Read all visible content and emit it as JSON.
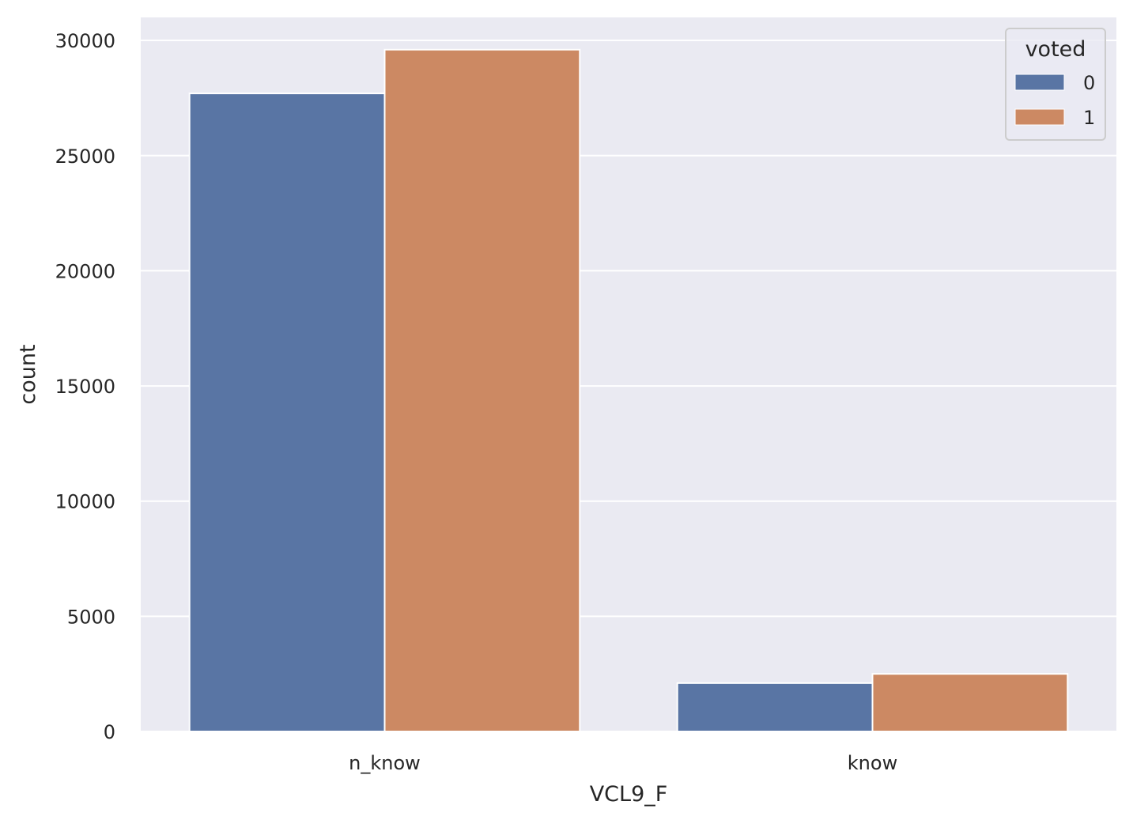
{
  "chart_data": {
    "type": "bar",
    "xlabel": "VCL9_F",
    "ylabel": "count",
    "categories": [
      "n_know",
      "know"
    ],
    "series": [
      {
        "name": "0",
        "values": [
          27700,
          2100
        ],
        "color": "#5975a4"
      },
      {
        "name": "1",
        "values": [
          29600,
          2500
        ],
        "color": "#cc8963"
      }
    ],
    "ylim": [
      0,
      31000
    ],
    "yticks": [
      0,
      5000,
      10000,
      15000,
      20000,
      25000,
      30000
    ],
    "grid": true,
    "legend": {
      "title": "voted",
      "placement": "top-right"
    },
    "plot_background": "#eaeaf2"
  }
}
